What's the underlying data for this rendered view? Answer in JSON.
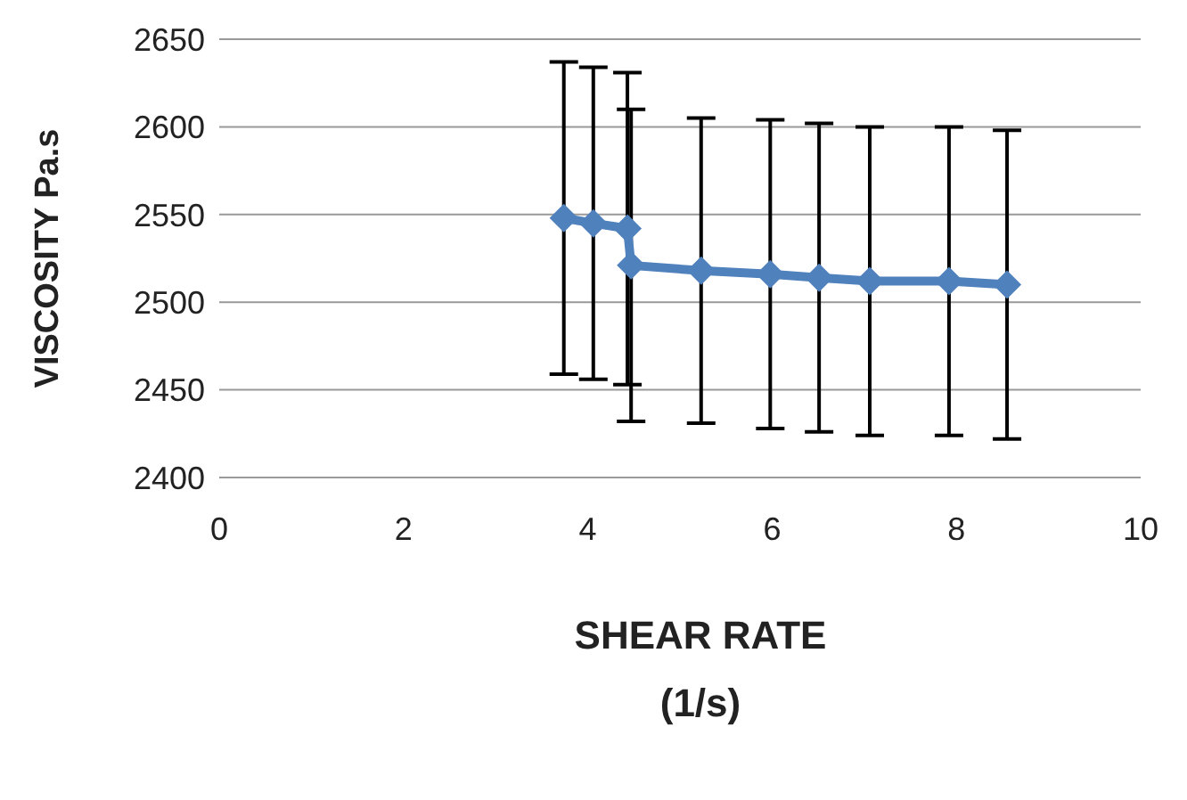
{
  "chart_data": {
    "type": "line",
    "xlabel": "SHEAR RATE (1/s)",
    "ylabel": "VISCOSITY  Pa.s",
    "x": [
      3.74,
      4.06,
      4.43,
      4.47,
      5.23,
      5.98,
      6.51,
      7.06,
      7.92,
      8.55
    ],
    "series": [
      {
        "color": "#4f81bd",
        "values": [
          2548,
          2545,
          2542,
          2521,
          2518,
          2516,
          2514,
          2512,
          2512,
          2510
        ],
        "errors": [
          89,
          89,
          89,
          89,
          87,
          88,
          88,
          88,
          88,
          88
        ]
      }
    ],
    "xlim": [
      0,
      10
    ],
    "xticks": [
      0,
      2,
      4,
      6,
      8,
      10
    ],
    "ylim": [
      2400,
      2650
    ],
    "yticks": [
      2400,
      2450,
      2500,
      2550,
      2600,
      2650
    ],
    "grid": "y",
    "marker": "diamond",
    "legend": false
  }
}
